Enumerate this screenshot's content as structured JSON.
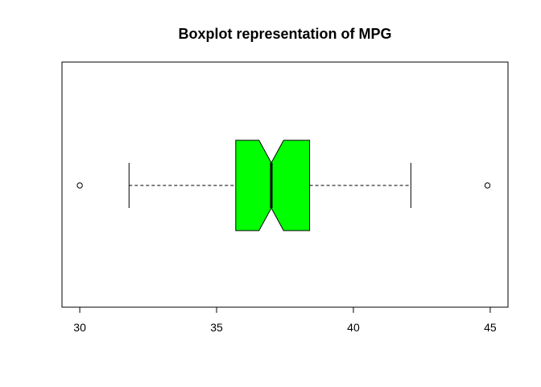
{
  "chart_data": {
    "type": "boxplot",
    "title": "Boxplot representation of MPG",
    "orientation": "horizontal",
    "notched": true,
    "xlim": [
      29.35,
      45.65
    ],
    "x_ticks": [
      30,
      35,
      40,
      45
    ],
    "x_tick_labels": [
      "30",
      "35",
      "40",
      "45"
    ],
    "stats": {
      "whisker_low": 31.8,
      "q1": 35.7,
      "median": 37.0,
      "q3": 38.4,
      "whisker_high": 42.1,
      "notch_low": 36.55,
      "notch_high": 37.45
    },
    "outliers": [
      30.0,
      44.9
    ],
    "box_color": "#00ff00",
    "line_color": "#000000",
    "grid": false,
    "legend": "none"
  }
}
